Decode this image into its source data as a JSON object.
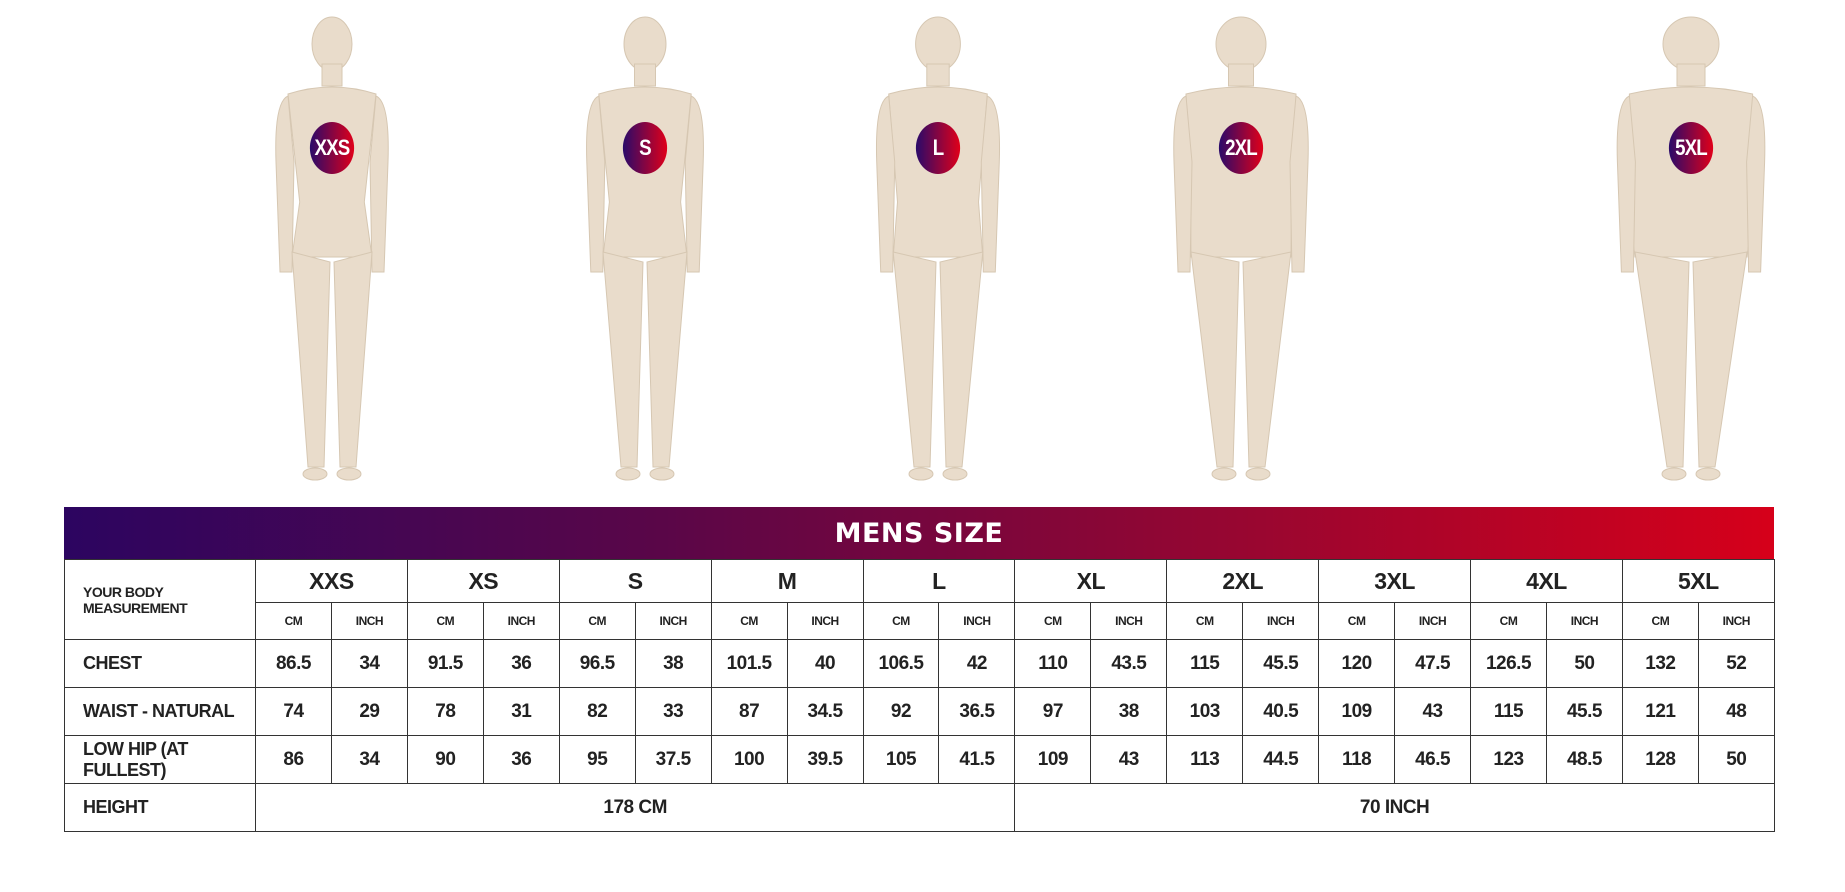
{
  "figures": [
    {
      "size": "XXS",
      "build": 1.0
    },
    {
      "size": "S",
      "build": 1.05
    },
    {
      "size": "L",
      "build": 1.12
    },
    {
      "size": "2XL",
      "build": 1.25
    },
    {
      "size": "5XL",
      "build": 1.4
    }
  ],
  "colors": {
    "skin": "#e9dccb",
    "gradient_start": "#2c0560",
    "gradient_end": "#d6001a"
  },
  "table": {
    "title": "MENS SIZE",
    "corner_label": "YOUR BODY MEASUREMENT",
    "sizes": [
      "XXS",
      "XS",
      "S",
      "M",
      "L",
      "XL",
      "2XL",
      "3XL",
      "4XL",
      "5XL"
    ],
    "units": {
      "cm": "CM",
      "inch": "INCH"
    },
    "rows": [
      {
        "label": "CHEST",
        "values": [
          "86.5",
          "34",
          "91.5",
          "36",
          "96.5",
          "38",
          "101.5",
          "40",
          "106.5",
          "42",
          "110",
          "43.5",
          "115",
          "45.5",
          "120",
          "47.5",
          "126.5",
          "50",
          "132",
          "52"
        ]
      },
      {
        "label": "WAIST - NATURAL",
        "values": [
          "74",
          "29",
          "78",
          "31",
          "82",
          "33",
          "87",
          "34.5",
          "92",
          "36.5",
          "97",
          "38",
          "103",
          "40.5",
          "109",
          "43",
          "115",
          "45.5",
          "121",
          "48"
        ]
      },
      {
        "label": "LOW HIP (AT FULLEST)",
        "values": [
          "86",
          "34",
          "90",
          "36",
          "95",
          "37.5",
          "100",
          "39.5",
          "105",
          "41.5",
          "109",
          "43",
          "113",
          "44.5",
          "118",
          "46.5",
          "123",
          "48.5",
          "128",
          "50"
        ]
      }
    ],
    "height": {
      "label": "HEIGHT",
      "cm": "178 CM",
      "inch": "70 INCH"
    }
  }
}
